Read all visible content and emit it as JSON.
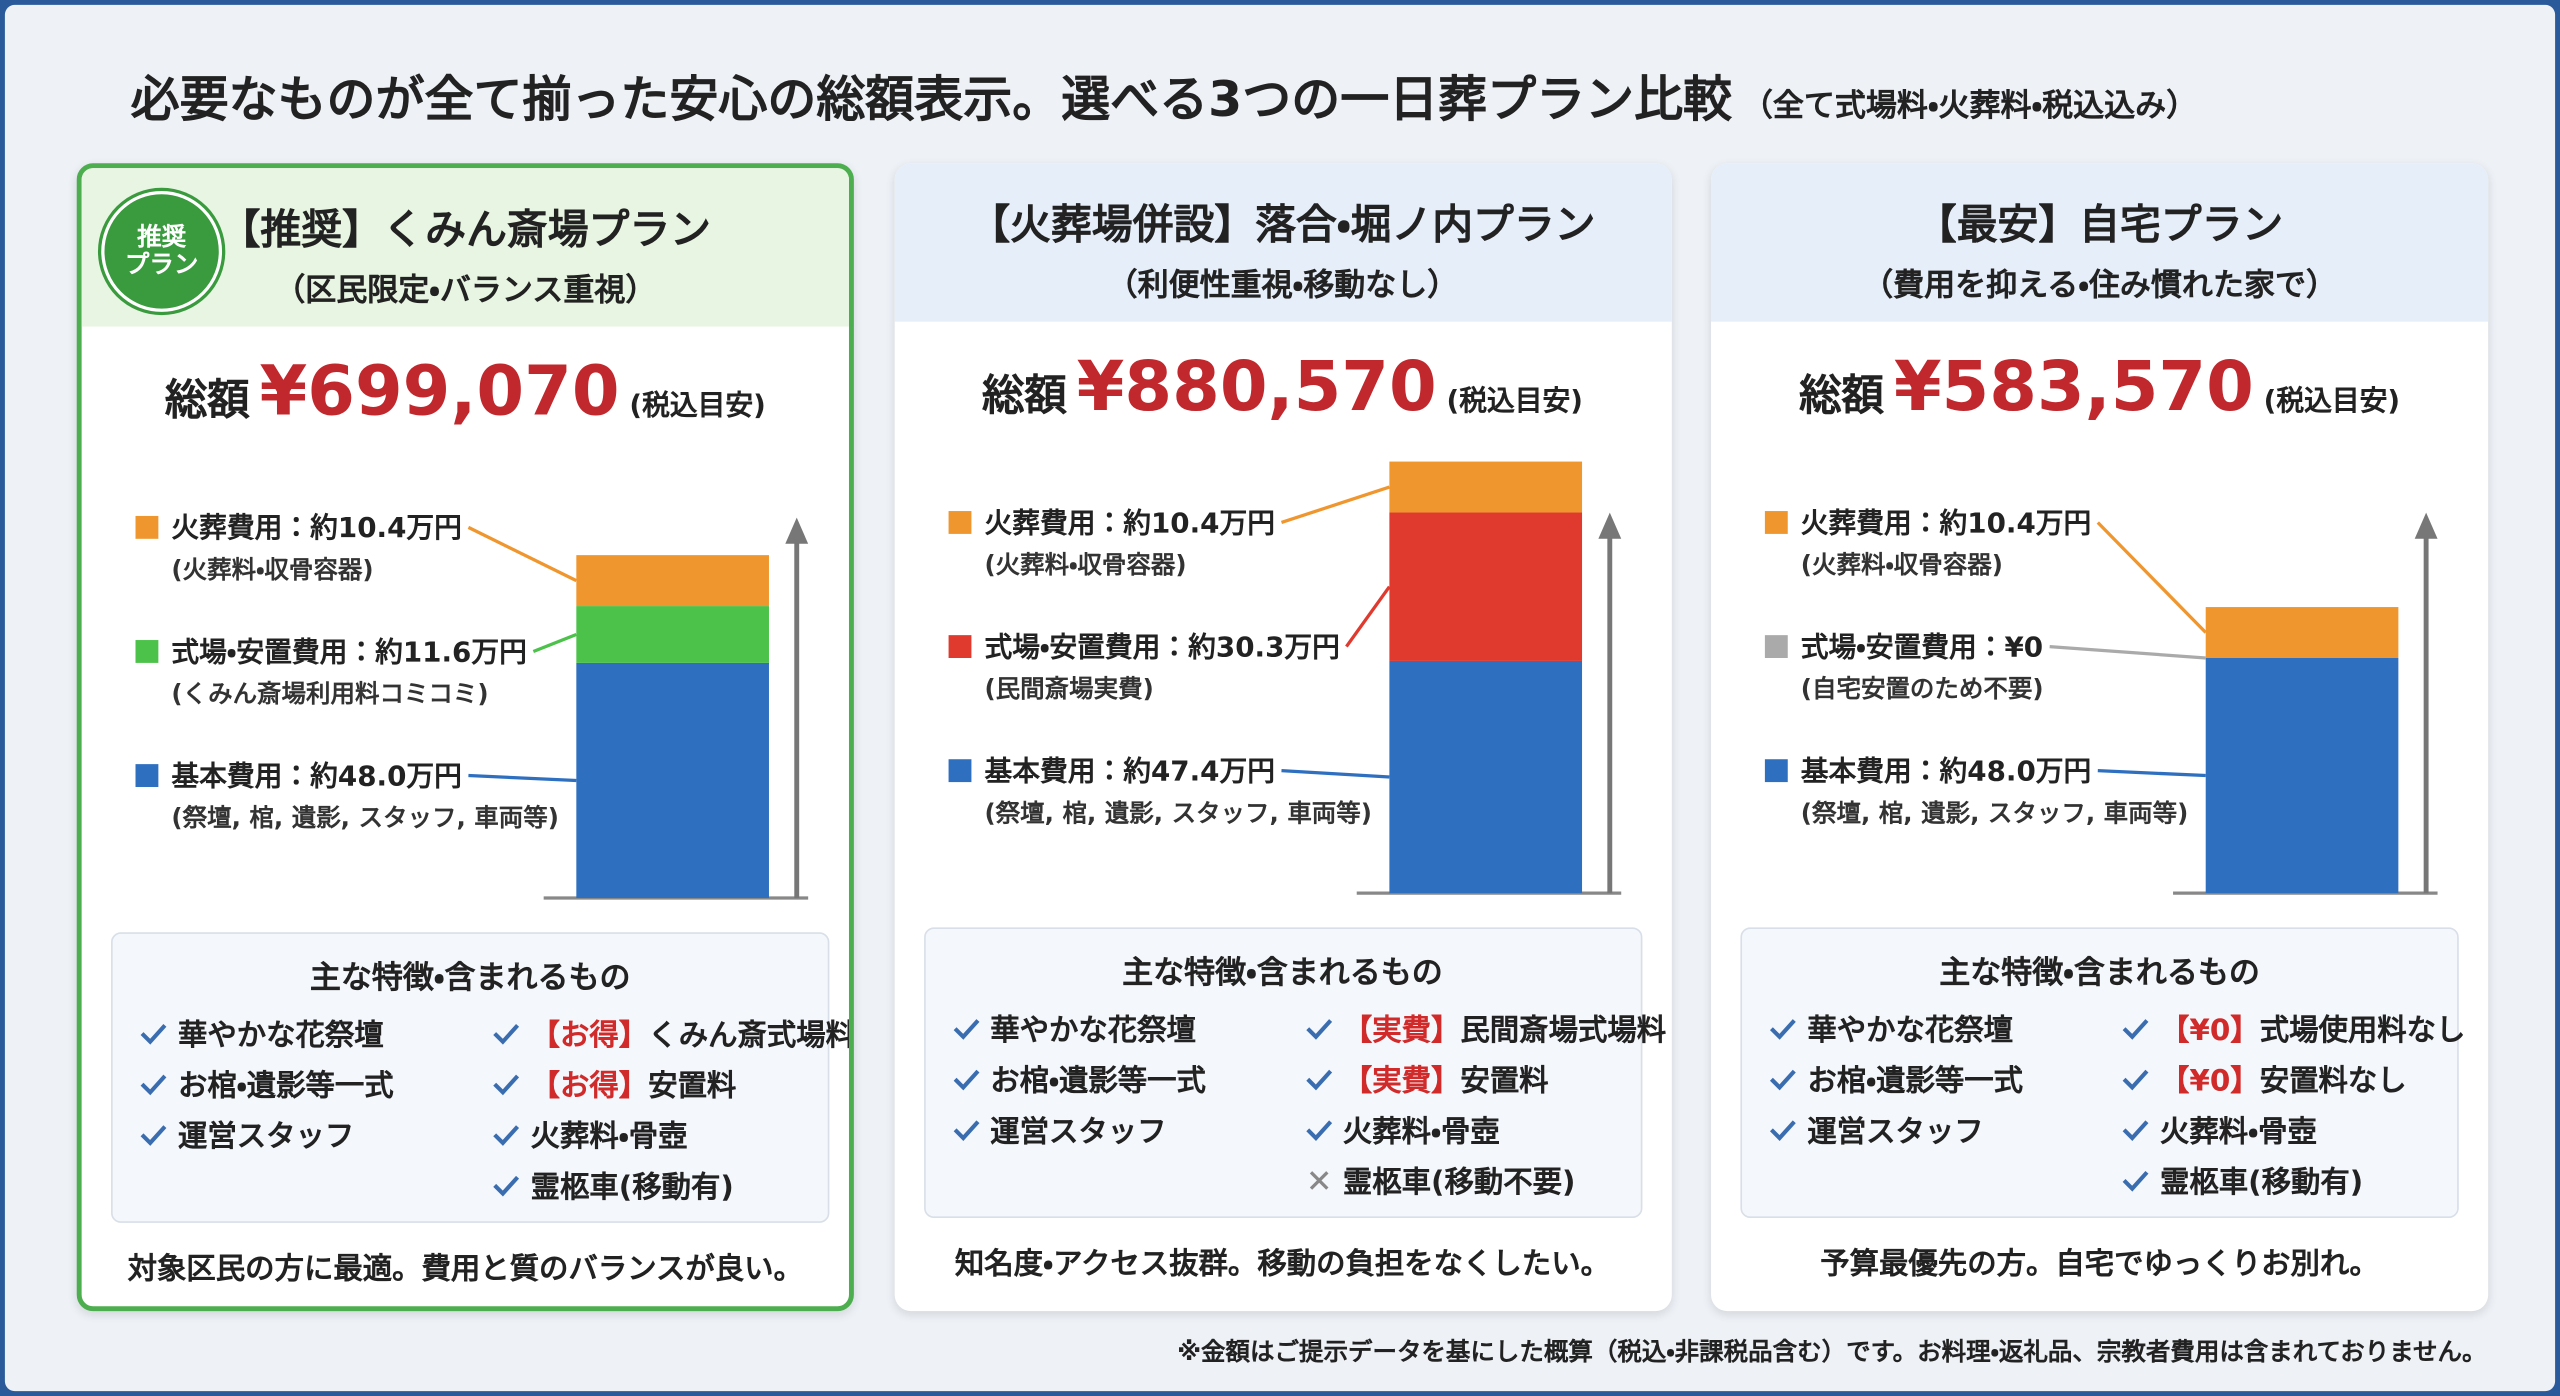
{
  "title": "必要なものが全て揃った安心の総額表示。選べる3つの一日葬プラン比較",
  "subtitle": "（全て式場料・火葬料・税込込み）",
  "footnote": "※金額はご提示データを基にした概算（税込・非課税品含む）です。お料理・返礼品、宗教者費用は含まれておりません。",
  "plans": [
    {
      "recommended": true,
      "badge": [
        "推奨",
        "プラン"
      ],
      "title": "【推奨】くみん斎場プラン",
      "subtitle": "（区民限定・バランス重視）",
      "total_label": "総額",
      "total": "¥699,070",
      "total_note": "(税込目安)",
      "segments": [
        {
          "label": "火葬費用：約10.4万円",
          "note": "(火葬料・収骨容器)",
          "value": 10.4,
          "color": "#f0962e"
        },
        {
          "label": "式場・安置費用：約11.6万円",
          "note": "(くみん斎場利用料コミコミ)",
          "value": 11.6,
          "color": "#4cc24a"
        },
        {
          "label": "基本費用：約48.0万円",
          "note": "(祭壇, 棺, 遺影, スタッフ, 車両等)",
          "value": 48.0,
          "color": "#2f6fc0"
        }
      ],
      "features_title": "主な特徴・含まれるもの",
      "features": [
        [
          {
            "text": "華やかな花祭壇"
          },
          {
            "text": "お棺・遺影等一式"
          },
          {
            "text": "運営スタッフ"
          }
        ],
        [
          {
            "tag": "【お得】",
            "text": "くみん斎式場料"
          },
          {
            "tag": "【お得】",
            "text": "安置料"
          },
          {
            "text": "火葬料・骨壺"
          },
          {
            "text": "霊柩車(移動有)"
          }
        ]
      ],
      "summary": "対象区民の方に最適。費用と質のバランスが良い。"
    },
    {
      "recommended": false,
      "title": "【火葬場併設】落合・堀ノ内プラン",
      "subtitle": "（利便性重視・移動なし）",
      "total_label": "総額",
      "total": "¥880,570",
      "total_note": "(税込目安)",
      "segments": [
        {
          "label": "火葬費用：約10.4万円",
          "note": "(火葬料・収骨容器)",
          "value": 10.4,
          "color": "#f0962e"
        },
        {
          "label": "式場・安置費用：約30.3万円",
          "note": "(民間斎場実費)",
          "value": 30.3,
          "color": "#e03a2f"
        },
        {
          "label": "基本費用：約47.4万円",
          "note": "(祭壇, 棺, 遺影, スタッフ, 車両等)",
          "value": 47.4,
          "color": "#2f6fc0"
        }
      ],
      "features_title": "主な特徴・含まれるもの",
      "features": [
        [
          {
            "text": "華やかな花祭壇"
          },
          {
            "text": "お棺・遺影等一式"
          },
          {
            "text": "運営スタッフ"
          }
        ],
        [
          {
            "tag": "【実費】",
            "text": "民間斎場式場料"
          },
          {
            "tag": "【実費】",
            "text": "安置料"
          },
          {
            "text": "火葬料・骨壺"
          },
          {
            "text": "霊柩車(移動不要)",
            "included": false
          }
        ]
      ],
      "summary": "知名度・アクセス抜群。移動の負担をなくしたい。"
    },
    {
      "recommended": false,
      "title": "【最安】自宅プラン",
      "subtitle": "（費用を抑える・住み慣れた家で）",
      "total_label": "総額",
      "total": "¥583,570",
      "total_note": "(税込目安)",
      "segments": [
        {
          "label": "火葬費用：約10.4万円",
          "note": "(火葬料・収骨容器)",
          "value": 10.4,
          "color": "#f0962e"
        },
        {
          "label": "式場・安置費用：¥0",
          "note": "(自宅安置のため不要)",
          "value": 0,
          "color": "#aaaaaa"
        },
        {
          "label": "基本費用：約48.0万円",
          "note": "(祭壇, 棺, 遺影, スタッフ, 車両等)",
          "value": 48.0,
          "color": "#2f6fc0"
        }
      ],
      "features_title": "主な特徴・含まれるもの",
      "features": [
        [
          {
            "text": "華やかな花祭壇"
          },
          {
            "text": "お棺・遺影等一式"
          },
          {
            "text": "運営スタッフ"
          }
        ],
        [
          {
            "tag": "【¥0】",
            "text": "式場使用料なし"
          },
          {
            "tag": "【¥0】",
            "text": "安置料なし"
          },
          {
            "text": "火葬料・骨壺"
          },
          {
            "text": "霊柩車(移動有)"
          }
        ]
      ],
      "summary": "予算最優先の方。自宅でゆっくりお別れ。"
    }
  ]
}
